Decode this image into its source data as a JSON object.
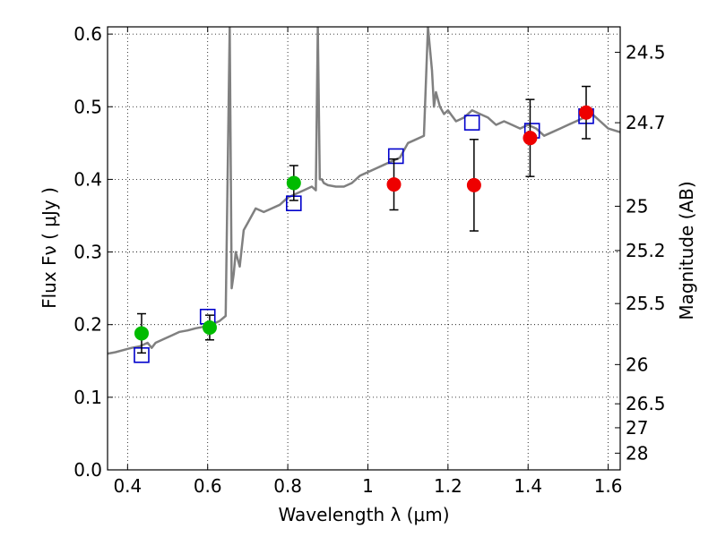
{
  "chart_data": {
    "type": "scatter",
    "title": "",
    "xlabel": "Wavelength  λ (μm)",
    "ylabel": "Flux  Fν ( μJy )",
    "y2label": "Magnitude (AB)",
    "xlim": [
      0.35,
      1.63
    ],
    "ylim": [
      0.0,
      0.61
    ],
    "grid": true,
    "x_ticks": [
      0.4,
      0.6,
      0.8,
      1.0,
      1.2,
      1.4,
      1.6
    ],
    "x_tick_labels": [
      "0.4",
      "0.6",
      "0.8",
      "1",
      "1.2",
      "1.4",
      "1.6"
    ],
    "y_ticks": [
      0.0,
      0.1,
      0.2,
      0.3,
      0.4,
      0.5,
      0.6
    ],
    "y_tick_labels": [
      "0.0",
      "0.1",
      "0.2",
      "0.3",
      "0.4",
      "0.5",
      "0.6"
    ],
    "y2_ticks": [
      {
        "flux": 0.575,
        "label": "24.5"
      },
      {
        "flux": 0.478,
        "label": "24.7"
      },
      {
        "flux": 0.363,
        "label": "25"
      },
      {
        "flux": 0.302,
        "label": "25.2"
      },
      {
        "flux": 0.229,
        "label": "25.5"
      },
      {
        "flux": 0.145,
        "label": "26"
      },
      {
        "flux": 0.091,
        "label": "26.5"
      },
      {
        "flux": 0.058,
        "label": "27"
      },
      {
        "flux": 0.023,
        "label": "28"
      }
    ],
    "model_spectrum": {
      "color": "#808080",
      "x": [
        0.35,
        0.37,
        0.39,
        0.41,
        0.43,
        0.45,
        0.46,
        0.47,
        0.49,
        0.51,
        0.53,
        0.55,
        0.57,
        0.59,
        0.61,
        0.63,
        0.645,
        0.655,
        0.66,
        0.665,
        0.67,
        0.68,
        0.69,
        0.7,
        0.72,
        0.74,
        0.76,
        0.78,
        0.8,
        0.82,
        0.84,
        0.86,
        0.87,
        0.875,
        0.88,
        0.885,
        0.89,
        0.9,
        0.92,
        0.94,
        0.96,
        0.98,
        1.0,
        1.02,
        1.04,
        1.06,
        1.08,
        1.1,
        1.12,
        1.14,
        1.15,
        1.16,
        1.165,
        1.17,
        1.18,
        1.19,
        1.2,
        1.22,
        1.24,
        1.26,
        1.28,
        1.3,
        1.32,
        1.34,
        1.36,
        1.38,
        1.4,
        1.42,
        1.44,
        1.46,
        1.48,
        1.5,
        1.52,
        1.54,
        1.56,
        1.58,
        1.6,
        1.63
      ],
      "y": [
        0.16,
        0.162,
        0.165,
        0.168,
        0.17,
        0.175,
        0.168,
        0.175,
        0.18,
        0.185,
        0.19,
        0.192,
        0.195,
        0.197,
        0.2,
        0.205,
        0.212,
        0.61,
        0.25,
        0.27,
        0.3,
        0.28,
        0.33,
        0.34,
        0.36,
        0.355,
        0.36,
        0.365,
        0.375,
        0.38,
        0.385,
        0.39,
        0.385,
        0.61,
        0.4,
        0.4,
        0.395,
        0.392,
        0.39,
        0.39,
        0.395,
        0.405,
        0.41,
        0.415,
        0.42,
        0.425,
        0.43,
        0.45,
        0.455,
        0.46,
        0.61,
        0.55,
        0.5,
        0.52,
        0.5,
        0.49,
        0.495,
        0.48,
        0.485,
        0.495,
        0.49,
        0.485,
        0.475,
        0.48,
        0.475,
        0.47,
        0.475,
        0.47,
        0.46,
        0.465,
        0.47,
        0.475,
        0.48,
        0.485,
        0.49,
        0.48,
        0.47,
        0.465
      ]
    },
    "series": [
      {
        "name": "",
        "marker": "square-open",
        "color": "#0000cc",
        "x": [
          0.435,
          0.6,
          0.815,
          1.07,
          1.26,
          1.41,
          1.545
        ],
        "y": [
          0.158,
          0.211,
          0.367,
          0.432,
          0.478,
          0.467,
          0.487
        ]
      },
      {
        "name": "",
        "marker": "circle",
        "color": "#00bb00",
        "x": [
          0.435,
          0.605,
          0.815
        ],
        "y": [
          0.188,
          0.196,
          0.395
        ],
        "yerr": [
          0.027,
          0.017,
          0.024
        ]
      },
      {
        "name": "",
        "marker": "circle",
        "color": "#ee0000",
        "x": [
          1.065,
          1.265,
          1.405,
          1.545
        ],
        "y": [
          0.393,
          0.392,
          0.457,
          0.492
        ],
        "yerr": [
          0.035,
          0.063,
          0.053,
          0.036
        ]
      }
    ]
  }
}
